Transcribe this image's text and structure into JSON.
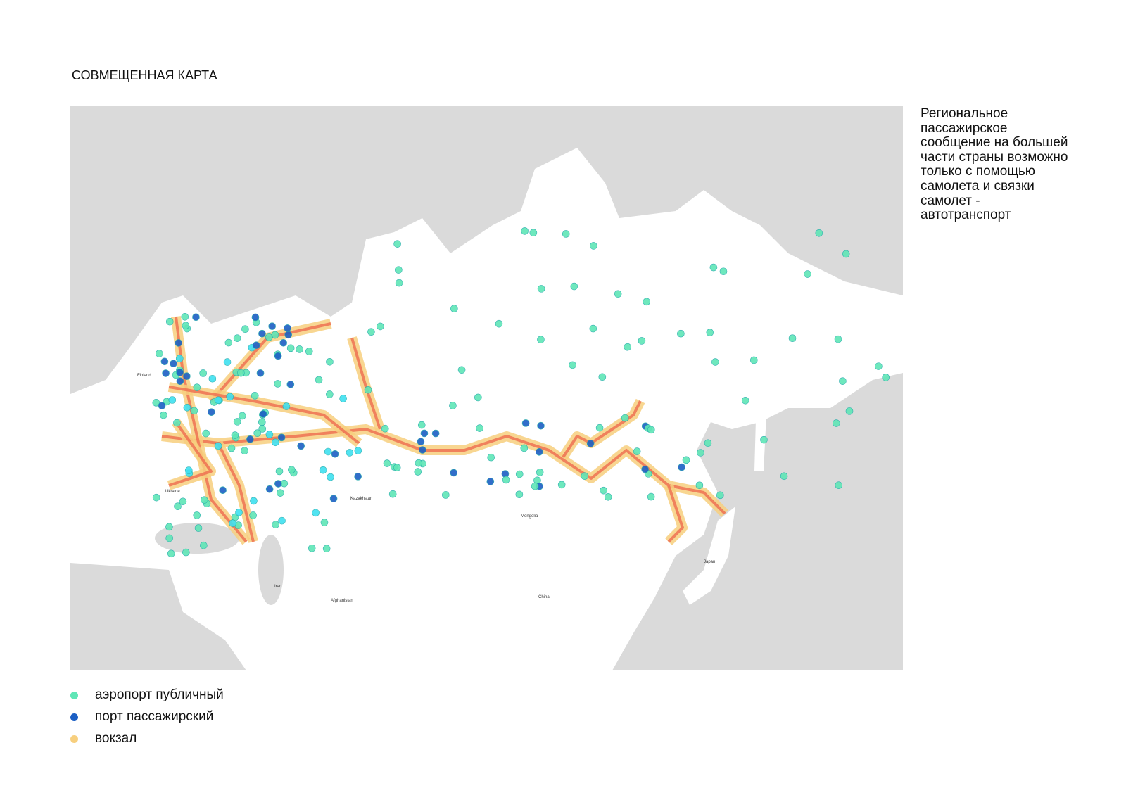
{
  "header": {
    "title": "СОВМЕЩЕННАЯ КАРТА"
  },
  "description": {
    "lines": [
      "Региональное",
      "пассажирское",
      "сообщение на большей",
      "части страны возможно",
      "только с помощью",
      "самолета и связки",
      "самолет -",
      "автотранспорт"
    ]
  },
  "legend": {
    "items": [
      {
        "label": "аэропорт публичный",
        "color": "#5fe6b6"
      },
      {
        "label": "порт пассажирский",
        "color": "#1b5fc4"
      },
      {
        "label": "вокзал",
        "color": "#f7cf7e"
      }
    ]
  },
  "map": {
    "labels": [
      {
        "text": "Kazakhstan"
      },
      {
        "text": "Mongolia"
      },
      {
        "text": "China"
      },
      {
        "text": "Ukraine"
      },
      {
        "text": "Finland"
      },
      {
        "text": "Japan"
      },
      {
        "text": "Iran"
      },
      {
        "text": "Afghanistan"
      }
    ]
  }
}
